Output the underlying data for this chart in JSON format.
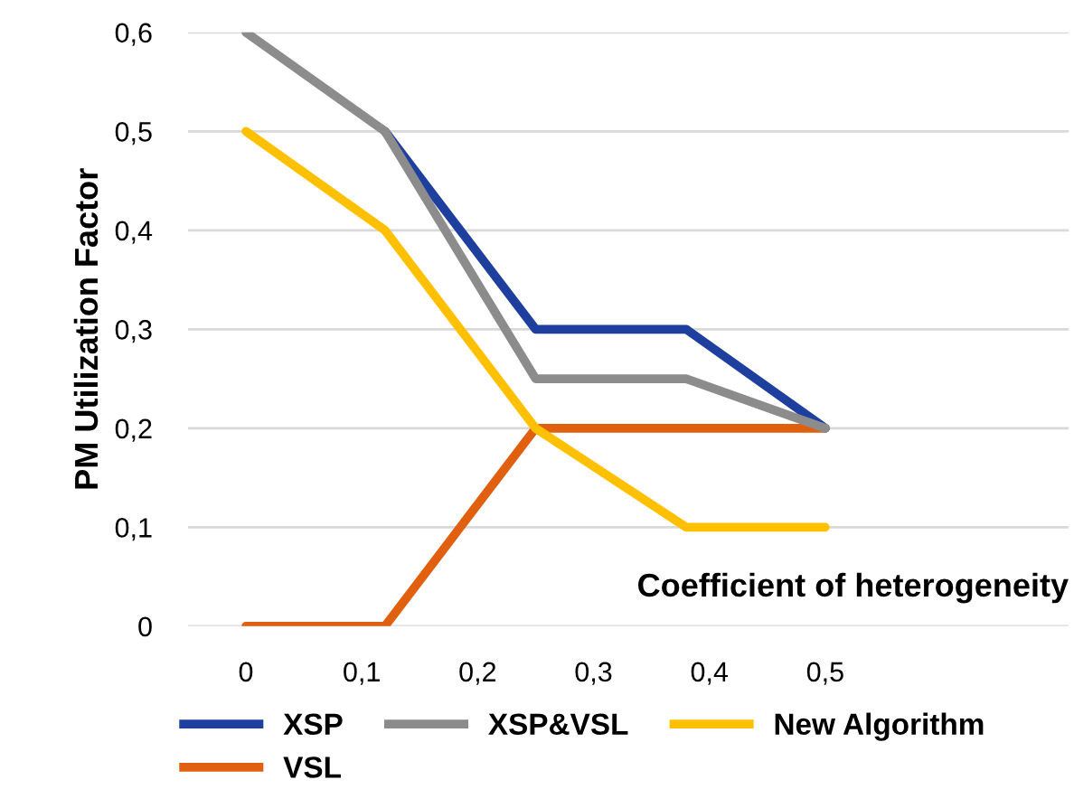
{
  "chart_data": {
    "type": "line",
    "xlabel": "Coefficient of heterogeneity",
    "ylabel": "PM Utilization Factor",
    "x": [
      0,
      0.12,
      0.25,
      0.38,
      0.5
    ],
    "series": [
      {
        "name": "XSP",
        "color": "#1f3f9f",
        "values": [
          null,
          0.5,
          0.3,
          0.3,
          0.2
        ]
      },
      {
        "name": "VSL",
        "color": "#e0600f",
        "values": [
          0,
          0,
          0.2,
          0.2,
          0.2
        ]
      },
      {
        "name": "XSP&VSL",
        "color": "#8c8c8c",
        "values": [
          0.6,
          0.5,
          0.25,
          0.25,
          0.2
        ]
      },
      {
        "name": "New Algorithm",
        "color": "#ffc000",
        "values": [
          0.5,
          0.4,
          0.2,
          0.1,
          0.1
        ]
      }
    ],
    "xlim": [
      -0.05,
      0.71
    ],
    "ylim": [
      0,
      0.6
    ],
    "xticks": [
      0,
      {
        "value": 0.1,
        "label": "0,1"
      },
      {
        "value": 0.2,
        "label": "0,2"
      },
      {
        "value": 0.3,
        "label": "0,3"
      },
      {
        "value": 0.4,
        "label": "0,4"
      },
      {
        "value": 0.5,
        "label": "0,5"
      }
    ],
    "yticks": [
      0,
      {
        "value": 0.1,
        "label": "0,1"
      },
      {
        "value": 0.2,
        "label": "0,2"
      },
      {
        "value": 0.3,
        "label": "0,3"
      },
      {
        "value": 0.4,
        "label": "0,4"
      },
      {
        "value": 0.5,
        "label": "0,5"
      },
      {
        "value": 0.6,
        "label": "0,6"
      }
    ],
    "grid": "y",
    "legend": "bottom",
    "marker": "none",
    "line_style": "solid"
  }
}
